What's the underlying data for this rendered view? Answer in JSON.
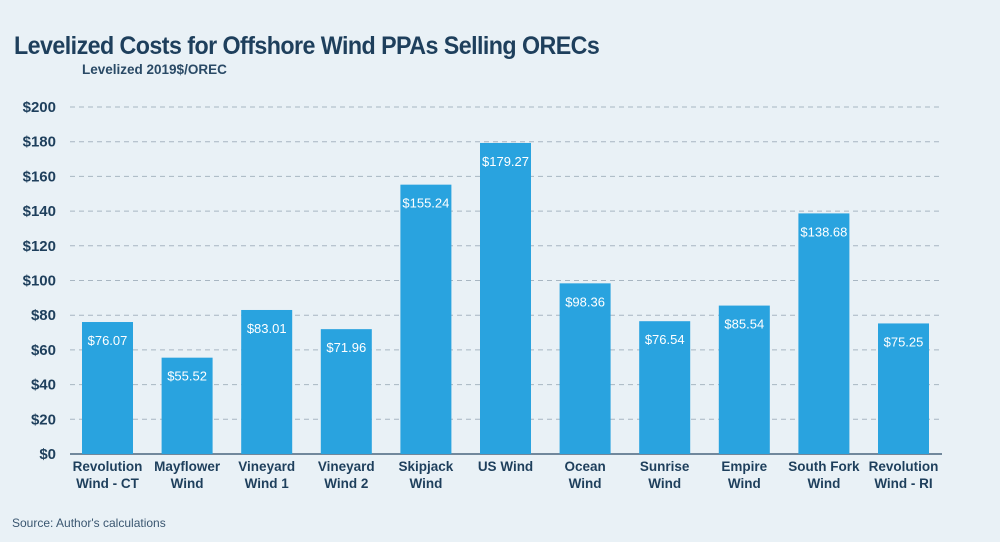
{
  "chart_data": {
    "type": "bar",
    "title": "Levelized Costs for Offshore Wind PPAs Selling ORECs",
    "ylabel": "Levelized 2019$/OREC",
    "xlabel": "",
    "ylim": [
      0,
      200
    ],
    "yticks": [
      0,
      20,
      40,
      60,
      80,
      100,
      120,
      140,
      160,
      180,
      200
    ],
    "ytick_labels": [
      "$0",
      "$20",
      "$40",
      "$60",
      "$80",
      "$100",
      "$120",
      "$140",
      "$160",
      "$180",
      "$200"
    ],
    "categories": [
      [
        "Revolution",
        "Wind - CT"
      ],
      [
        "Mayflower",
        "Wind"
      ],
      [
        "Vineyard",
        "Wind 1"
      ],
      [
        "Vineyard",
        "Wind 2"
      ],
      [
        "Skipjack",
        "Wind"
      ],
      [
        "US Wind"
      ],
      [
        "Ocean",
        "Wind"
      ],
      [
        "Sunrise",
        "Wind"
      ],
      [
        "Empire",
        "Wind"
      ],
      [
        "South Fork",
        "Wind"
      ],
      [
        "Revolution",
        "Wind - RI"
      ]
    ],
    "values": [
      76.07,
      55.52,
      83.01,
      71.96,
      155.24,
      179.27,
      98.36,
      76.54,
      85.54,
      138.68,
      75.25
    ],
    "data_labels": [
      "$76.07",
      "$55.52",
      "$83.01",
      "$71.96",
      "$155.24",
      "$179.27",
      "$98.36",
      "$76.54",
      "$85.54",
      "$138.68",
      "$75.25"
    ],
    "grid": true,
    "bar_color": "#29a3df",
    "grid_color": "#a8b6c2"
  },
  "source": "Source: Author's calculations"
}
